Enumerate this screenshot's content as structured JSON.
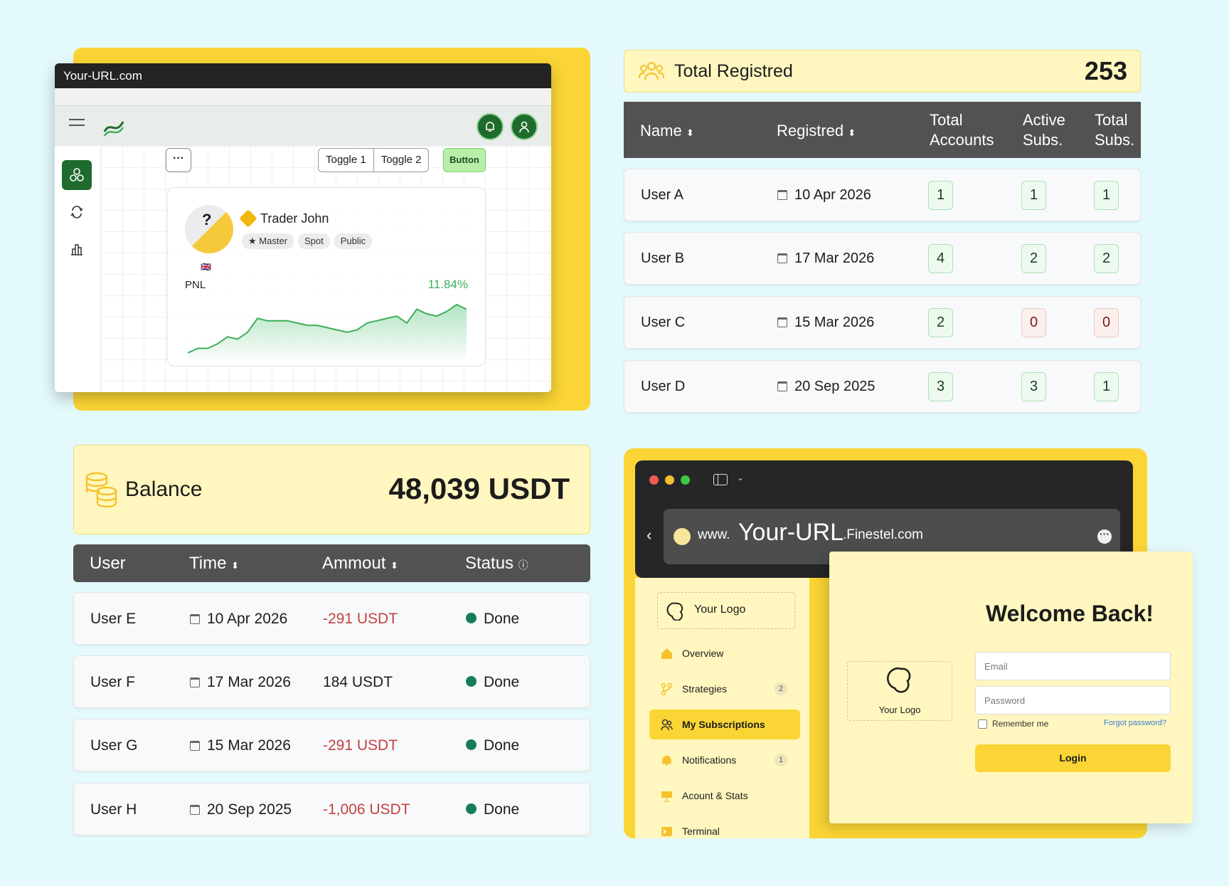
{
  "trader_window": {
    "url": "Your-URL.com",
    "more_label": "···",
    "toggles": [
      "Toggle 1",
      "Toggle 2"
    ],
    "button_label": "Button",
    "trader": {
      "name": "Trader John",
      "avatar_text": "?",
      "flag": "🇬🇧",
      "tags": [
        "Master",
        "Spot",
        "Public"
      ],
      "pnl_label": "PNL",
      "pnl_value": "11.84%"
    },
    "pnl_series": [
      2,
      4,
      4,
      6,
      9,
      8,
      11,
      17,
      16,
      16,
      16,
      15,
      14,
      14,
      13,
      12,
      11,
      12,
      15,
      16,
      17,
      18,
      15,
      21,
      19,
      18,
      20,
      23,
      21
    ],
    "colors": {
      "accent": "#1e6b2d",
      "pnl": "#3fae5a",
      "panel": "#fbd535"
    }
  },
  "registered": {
    "title": "Total Registred",
    "count": "253",
    "columns": [
      "Name",
      "Registred",
      "Total\nAccounts",
      "Active\nSubs.",
      "Total\nSubs."
    ],
    "rows": [
      {
        "name": "User A",
        "date": "10 Apr 2026",
        "total_accounts": "1",
        "active_subs": "1",
        "total_subs": "1"
      },
      {
        "name": "User B",
        "date": "17 Mar 2026",
        "total_accounts": "4",
        "active_subs": "2",
        "total_subs": "2"
      },
      {
        "name": "User C",
        "date": "15 Mar 2026",
        "total_accounts": "2",
        "active_subs": "0",
        "total_subs": "0"
      },
      {
        "name": "User D",
        "date": "20 Sep 2025",
        "total_accounts": "3",
        "active_subs": "3",
        "total_subs": "1"
      }
    ]
  },
  "balance": {
    "title": "Balance",
    "amount": "48,039 USDT",
    "columns": [
      "User",
      "Time",
      "Ammout",
      "Status"
    ],
    "rows": [
      {
        "user": "User E",
        "time": "10 Apr 2026",
        "amount": "-291 USDT",
        "status": "Done"
      },
      {
        "user": "User F",
        "time": "17 Mar 2026",
        "amount": "184 USDT",
        "status": "Done"
      },
      {
        "user": "User G",
        "time": "15 Mar 2026",
        "amount": "-291 USDT",
        "status": "Done"
      },
      {
        "user": "User H",
        "time": "20 Sep 2025",
        "amount": "-1,006 USDT",
        "status": "Done"
      }
    ]
  },
  "login_app": {
    "url_prefix": "www.",
    "url_main": "Your-URL",
    "url_domain": ".Finestel.com",
    "logo_text": "Your Logo",
    "nav": [
      {
        "label": "Overview",
        "count": ""
      },
      {
        "label": "Strategies",
        "count": "2"
      },
      {
        "label": "My Subscriptions",
        "count": ""
      },
      {
        "label": "Notifications",
        "count": "1"
      },
      {
        "label": "Acount & Stats",
        "count": ""
      },
      {
        "label": "Terminal",
        "count": ""
      }
    ],
    "welcome": "Welcome Back!",
    "email_placeholder": "Email",
    "password_placeholder": "Password",
    "remember_label": "Remember me",
    "forgot_label": "Forgot password?",
    "login_label": "Login"
  }
}
